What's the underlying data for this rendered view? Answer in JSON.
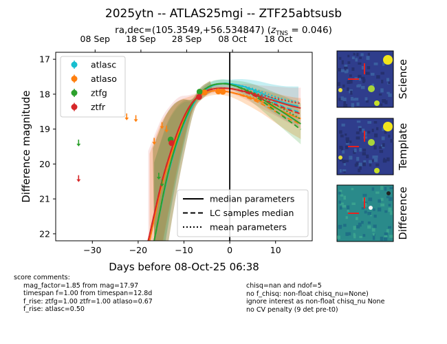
{
  "title": "2025ytn -- ATLAS25mgi -- ZTF25abtsusb",
  "subtitle_prefix": "ra,dec=(105.3549,+56.534847) (",
  "subtitle_z_symbol": "z",
  "subtitle_z_sub": "TNS",
  "subtitle_suffix": " = 0.046)",
  "chart_data": {
    "type": "scatter",
    "title": "2025ytn -- ATLAS25mgi -- ZTF25abtsusb",
    "subtitle": "ra,dec=(105.3549,+56.534847) (z_TNS = 0.046)",
    "xlabel": "Days before 08-Oct-25 06:38",
    "ylabel": "Difference magnitude",
    "xlim": [
      -38,
      18
    ],
    "ylim": [
      22.2,
      16.8
    ],
    "y_inverted": true,
    "x_ticks": [
      -30,
      -20,
      -10,
      0,
      10
    ],
    "x_tick_labels": [
      "−30",
      "−20",
      "−10",
      "0",
      "10"
    ],
    "y_ticks": [
      17,
      18,
      19,
      20,
      21,
      22
    ],
    "y_tick_labels": [
      "17",
      "18",
      "19",
      "20",
      "21",
      "22"
    ],
    "top_axis_ticks": [
      -30,
      -20,
      -10,
      0,
      10
    ],
    "top_axis_labels": [
      "08 Sep",
      "18 Sep",
      "28 Sep",
      "08 Oct",
      "18 Oct"
    ],
    "vline_x": 0,
    "legend_position": "upper-left",
    "series": [
      {
        "name": "atlasc",
        "color": "#17becf",
        "points": [],
        "upper_limits": []
      },
      {
        "name": "atlaso",
        "color": "#ff7f0e",
        "points": [
          [
            -5.5,
            17.95
          ],
          [
            -2.5,
            17.92
          ],
          [
            -1.5,
            17.93
          ]
        ],
        "upper_limits": [
          [
            -22.5,
            18.65
          ],
          [
            -20.5,
            18.7
          ],
          [
            -16.5,
            19.35
          ],
          [
            -14.8,
            18.9
          ],
          [
            -13.8,
            19.0
          ]
        ]
      },
      {
        "name": "ztfg",
        "color": "#2ca02c",
        "points": [
          [
            -12.9,
            19.3
          ],
          [
            -6.6,
            17.93
          ]
        ],
        "upper_limits": [
          [
            -33.0,
            19.4
          ],
          [
            -14.8,
            20.55
          ],
          [
            -15.5,
            20.35
          ]
        ]
      },
      {
        "name": "ztfr",
        "color": "#d62728",
        "points": [
          [
            -12.7,
            19.4
          ],
          [
            -6.7,
            18.08
          ]
        ],
        "upper_limits": [
          [
            -33.0,
            20.42
          ]
        ]
      }
    ],
    "model_curves": [
      {
        "color": "#17becf",
        "style": "solid",
        "x": [
          -16.5,
          -14,
          -12,
          -10,
          -8,
          -6,
          -4,
          -2,
          0,
          3,
          6,
          9,
          12,
          15
        ],
        "y": [
          22.2,
          20.6,
          19.6,
          18.85,
          18.3,
          17.95,
          17.77,
          17.7,
          17.7,
          17.78,
          17.92,
          18.1,
          18.25,
          18.35
        ]
      },
      {
        "color": "#ff7f0e",
        "style": "solid",
        "x": [
          -17.5,
          -15,
          -13,
          -11,
          -9,
          -7,
          -5,
          -3,
          -1,
          1,
          4,
          7,
          10,
          13,
          15.5
        ],
        "y": [
          22.2,
          20.7,
          19.8,
          19.05,
          18.45,
          18.1,
          17.95,
          17.9,
          17.92,
          17.97,
          18.08,
          18.22,
          18.4,
          18.58,
          18.7
        ]
      },
      {
        "color": "#2ca02c",
        "style": "solid",
        "x": [
          -16.5,
          -14,
          -12,
          -10,
          -8,
          -6,
          -4,
          -2,
          0,
          3,
          6,
          9,
          12,
          15.5
        ],
        "y": [
          22.2,
          20.55,
          19.55,
          18.8,
          18.25,
          17.92,
          17.75,
          17.7,
          17.72,
          17.85,
          18.05,
          18.3,
          18.55,
          18.85
        ]
      },
      {
        "color": "#d62728",
        "style": "solid",
        "x": [
          -17.8,
          -15,
          -13,
          -11,
          -9,
          -7,
          -5,
          -3,
          -1,
          1,
          4,
          7,
          10,
          13,
          15.5
        ],
        "y": [
          22.2,
          20.6,
          19.7,
          18.95,
          18.4,
          18.07,
          17.9,
          17.84,
          17.83,
          17.86,
          17.95,
          18.08,
          18.2,
          18.32,
          18.4
        ]
      }
    ],
    "legend2": [
      "median parameters",
      "LC samples median",
      "mean parameters"
    ]
  },
  "thumbnails": [
    "Science",
    "Template",
    "Difference"
  ],
  "comments_left": [
    "score comments:",
    "mag_factor=1.85 from mag=17.97",
    "timespan f=1.00 from timespan=12.8d",
    "f_rise: ztfg=1.00 ztfr=1.00 atlaso=0.67",
    "f_rise: atlasc=0.50"
  ],
  "comments_right": [
    "chisq=nan and ndof=5",
    "no f_chisq: non-float chisq_nu=None)",
    "ignore interest as non-float chisq_nu None",
    "no CV penalty (9 det pre-t0)"
  ]
}
